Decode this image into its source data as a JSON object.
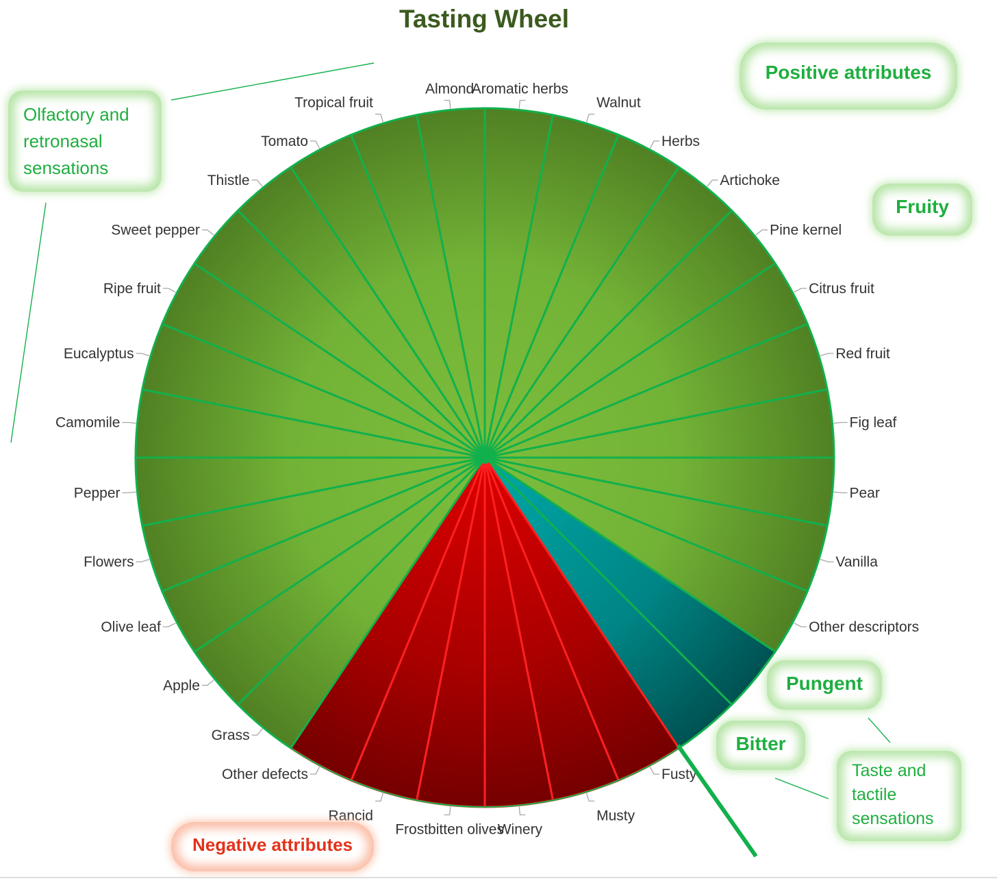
{
  "title": "Tasting Wheel",
  "colors": {
    "title": "#3b5a1e",
    "positive_slice": "#6fae32",
    "positive_edge": "#4f7e22",
    "bitter_pungent_slice": "#008b8b",
    "negative_slice": "#c40000",
    "divider_green": "#12b04c",
    "divider_red": "#ff2020",
    "callout_text_green": "#1fae3f",
    "callout_text_red": "#e3321b"
  },
  "callouts": {
    "olfactory": "Olfactory and retronasal sensations",
    "positive": "Positive attributes",
    "fruity": "Fruity",
    "pungent": "Pungent",
    "bitter": "Bitter",
    "taste_tactile": "Taste and tactile sensations",
    "negative": "Negative attributes"
  },
  "chart_data": {
    "type": "pie",
    "title": "Tasting Wheel",
    "start": "top, clockwise",
    "slices": [
      {
        "label": "Aromatic herbs",
        "value": 1,
        "group": "positive"
      },
      {
        "label": "Walnut",
        "value": 1,
        "group": "positive"
      },
      {
        "label": "Herbs",
        "value": 1,
        "group": "positive"
      },
      {
        "label": "Artichoke",
        "value": 1,
        "group": "positive"
      },
      {
        "label": "Pine kernel",
        "value": 1,
        "group": "positive"
      },
      {
        "label": "Citrus fruit",
        "value": 1,
        "group": "positive"
      },
      {
        "label": "Red fruit",
        "value": 1,
        "group": "positive"
      },
      {
        "label": "Fig leaf",
        "value": 1,
        "group": "positive"
      },
      {
        "label": "Pear",
        "value": 1,
        "group": "positive"
      },
      {
        "label": "Vanilla",
        "value": 1,
        "group": "positive"
      },
      {
        "label": "Other descriptors",
        "value": 1,
        "group": "positive"
      },
      {
        "label": "Pungent",
        "value": 1,
        "group": "bitter_pungent"
      },
      {
        "label": "Bitter",
        "value": 1,
        "group": "bitter_pungent"
      },
      {
        "label": "Fusty",
        "value": 1,
        "group": "negative"
      },
      {
        "label": "Musty",
        "value": 1,
        "group": "negative"
      },
      {
        "label": "Winery",
        "value": 1,
        "group": "negative"
      },
      {
        "label": "Frostbitten olives",
        "value": 1,
        "group": "negative"
      },
      {
        "label": "Rancid",
        "value": 1,
        "group": "negative"
      },
      {
        "label": "Other defects",
        "value": 1,
        "group": "negative"
      },
      {
        "label": "Grass",
        "value": 1,
        "group": "positive"
      },
      {
        "label": "Apple",
        "value": 1,
        "group": "positive"
      },
      {
        "label": "Olive leaf",
        "value": 1,
        "group": "positive"
      },
      {
        "label": "Flowers",
        "value": 1,
        "group": "positive"
      },
      {
        "label": "Pepper",
        "value": 1,
        "group": "positive"
      },
      {
        "label": "Camomile",
        "value": 1,
        "group": "positive"
      },
      {
        "label": "Eucalyptus",
        "value": 1,
        "group": "positive"
      },
      {
        "label": "Ripe fruit",
        "value": 1,
        "group": "positive"
      },
      {
        "label": "Sweet pepper",
        "value": 1,
        "group": "positive"
      },
      {
        "label": "Thistle",
        "value": 1,
        "group": "positive"
      },
      {
        "label": "Tomato",
        "value": 1,
        "group": "positive"
      },
      {
        "label": "Tropical fruit",
        "value": 1,
        "group": "positive"
      },
      {
        "label": "Almond",
        "value": 1,
        "group": "positive"
      }
    ]
  }
}
